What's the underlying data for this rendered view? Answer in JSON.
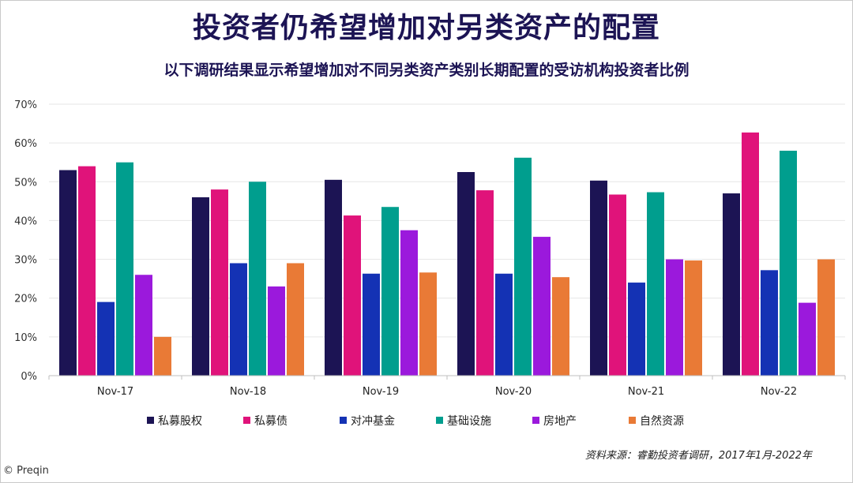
{
  "title": "投资者仍希望增加对另类资产的配置",
  "subtitle": "以下调研结果显示希望增加对不同另类资产类别长期配置的受访机构投资者比例",
  "source": "资料来源：睿勤投资者调研，2017年1月-2022年",
  "copyright": "© Preqin",
  "chart_data": {
    "type": "bar",
    "categories": [
      "Nov-17",
      "Nov-18",
      "Nov-19",
      "Nov-20",
      "Nov-21",
      "Nov-22"
    ],
    "series": [
      {
        "name": "私募股权",
        "color": "#1c1454",
        "values": [
          53,
          46,
          50.5,
          52.5,
          50.3,
          47
        ]
      },
      {
        "name": "私募债",
        "color": "#e0137a",
        "values": [
          54,
          48,
          41.3,
          47.8,
          46.7,
          62.7
        ]
      },
      {
        "name": "对冲基金",
        "color": "#1432b4",
        "values": [
          19,
          29,
          26.3,
          26.3,
          24,
          27.2
        ]
      },
      {
        "name": "基础设施",
        "color": "#009e8e",
        "values": [
          55,
          50,
          43.5,
          56.2,
          47.3,
          58
        ]
      },
      {
        "name": "房地产",
        "color": "#9b19dc",
        "values": [
          26,
          23,
          37.5,
          35.8,
          30,
          18.8
        ]
      },
      {
        "name": "自然资源",
        "color": "#e97a36",
        "values": [
          10,
          29,
          26.6,
          25.4,
          29.7,
          30
        ]
      }
    ],
    "ylim": [
      0,
      70
    ],
    "yticks": [
      "0%",
      "10%",
      "20%",
      "30%",
      "40%",
      "50%",
      "60%",
      "70%"
    ],
    "grid": true,
    "legend_position": "bottom"
  }
}
